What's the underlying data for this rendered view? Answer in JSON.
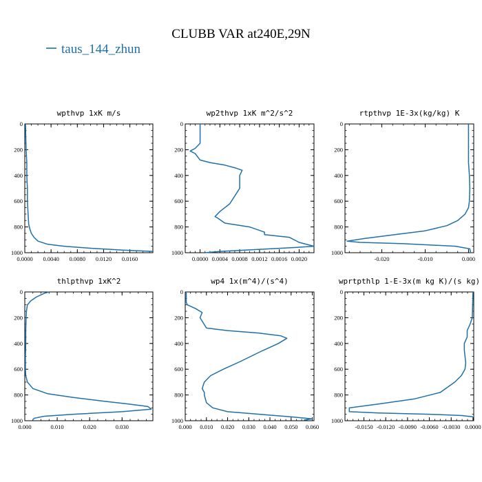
{
  "figure": {
    "title": "CLUBB VAR at240E,29N",
    "legend_label": "taus_144_zhun",
    "line_color": "#1f6fa8"
  },
  "chart_data": [
    {
      "type": "line",
      "title": "wpthvp   1xK m/s",
      "xlim": [
        0,
        0.0195
      ],
      "ylim": [
        1000,
        0
      ],
      "xticks": [
        0,
        0.004,
        0.008,
        0.012,
        0.016
      ],
      "xtick_labels": [
        "0.0000",
        "0.0040",
        "0.0080",
        "0.0120",
        "0.0160"
      ],
      "yticks": [
        0,
        200,
        400,
        600,
        800,
        1000
      ],
      "ytick_labels": [
        "0",
        "200",
        "400",
        "600",
        "800",
        "1000"
      ],
      "series": [
        {
          "x": [
            0.0001,
            0.0002,
            0.0003,
            0.0003,
            0.0004,
            0.0004,
            0.0005,
            0.0006,
            0.0008,
            0.001,
            0.0014,
            0.002,
            0.0035,
            0.006,
            0.01,
            0.015,
            0.0195
          ],
          "y": [
            0,
            200,
            300,
            400,
            500,
            600,
            700,
            780,
            820,
            850,
            880,
            910,
            935,
            950,
            965,
            980,
            990
          ]
        }
      ]
    },
    {
      "type": "line",
      "title": "wp2thvp   1xK m^2/s^2",
      "xlim": [
        -0.0003,
        0.0023
      ],
      "ylim": [
        1000,
        0
      ],
      "xticks": [
        0,
        0.0004,
        0.0008,
        0.0012,
        0.0016,
        0.002
      ],
      "xtick_labels": [
        "0.0000",
        "0.0004",
        "0.0008",
        "0.0012",
        "0.0016",
        "0.0020"
      ],
      "yticks": [
        0,
        200,
        400,
        600,
        800,
        1000
      ],
      "ytick_labels": [
        "0",
        "200",
        "400",
        "600",
        "800",
        "1000"
      ],
      "series": [
        {
          "x": [
            0.0,
            0.0,
            -0.0001,
            -0.0002,
            -0.0001,
            0.0,
            0.0002,
            0.0005,
            0.0007,
            0.00085,
            0.0008,
            0.0008,
            0.0008,
            0.0007,
            0.0006,
            0.0004,
            0.0003,
            0.00035,
            0.0005,
            0.001,
            0.0013,
            0.0013,
            0.0018,
            0.002,
            0.0023,
            0.0019,
            0.0014,
            0.0009,
            0.0004,
            0.0001
          ],
          "y": [
            0,
            150,
            190,
            210,
            230,
            280,
            300,
            320,
            340,
            360,
            400,
            450,
            500,
            560,
            620,
            680,
            720,
            730,
            770,
            800,
            840,
            860,
            880,
            920,
            950,
            960,
            970,
            980,
            990,
            1000
          ]
        }
      ]
    },
    {
      "type": "line",
      "title": "rtpthvp   1E-3x(kg/kg) K",
      "xlim": [
        -0.0285,
        0.0012
      ],
      "ylim": [
        1000,
        0
      ],
      "xticks": [
        -0.02,
        -0.01,
        0
      ],
      "xtick_labels": [
        "-0.020",
        "-0.010",
        "0.000"
      ],
      "yticks": [
        0,
        200,
        400,
        600,
        800,
        1000
      ],
      "ytick_labels": [
        "0",
        "200",
        "400",
        "600",
        "800",
        "1000"
      ],
      "series": [
        {
          "x": [
            0.0,
            0.0,
            0.0,
            0.0002,
            0.0003,
            0.0002,
            0.0,
            -0.0008,
            -0.0025,
            -0.005,
            -0.01,
            -0.017,
            -0.024,
            -0.028,
            -0.025,
            -0.015,
            -0.003,
            0.0003,
            0.0005
          ],
          "y": [
            0,
            100,
            300,
            400,
            500,
            600,
            650,
            700,
            750,
            790,
            830,
            860,
            890,
            910,
            920,
            930,
            950,
            970,
            1000
          ]
        }
      ]
    },
    {
      "type": "line",
      "title": "thlpthvp   1xK^2",
      "xlim": [
        0,
        0.0395
      ],
      "ylim": [
        1000,
        0
      ],
      "xticks": [
        0,
        0.01,
        0.02,
        0.03
      ],
      "xtick_labels": [
        "0.000",
        "0.010",
        "0.020",
        "0.030"
      ],
      "yticks": [
        0,
        200,
        400,
        600,
        800,
        1000
      ],
      "ytick_labels": [
        "0",
        "200",
        "400",
        "600",
        "800",
        "1000"
      ],
      "series": [
        {
          "x": [
            0.0075,
            0.006,
            0.0035,
            0.0018,
            0.0008,
            0.0005,
            0.0004,
            0.0003,
            0.0003,
            0.0002,
            0.0002,
            0.0003,
            0.0008,
            0.0025,
            0.007,
            0.015,
            0.025,
            0.032,
            0.038,
            0.039,
            0.03,
            0.015,
            0.006,
            0.003,
            0.0025
          ],
          "y": [
            0,
            10,
            40,
            70,
            100,
            150,
            200,
            300,
            400,
            500,
            600,
            650,
            700,
            750,
            790,
            820,
            850,
            870,
            890,
            910,
            930,
            950,
            965,
            980,
            990
          ]
        }
      ]
    },
    {
      "type": "line",
      "title": "wp4   1x(m^4)/(s^4)",
      "xlim": [
        0,
        0.0608
      ],
      "ylim": [
        1000,
        0
      ],
      "xticks": [
        0,
        0.01,
        0.02,
        0.03,
        0.04,
        0.05,
        0.06
      ],
      "xtick_labels": [
        "0.000",
        "0.010",
        "0.020",
        "0.030",
        "0.040",
        "0.050",
        "0.060"
      ],
      "yticks": [
        0,
        200,
        400,
        600,
        800,
        1000
      ],
      "ytick_labels": [
        "0",
        "200",
        "400",
        "600",
        "800",
        "1000"
      ],
      "series": [
        {
          "x": [
            0.0005,
            0.0005,
            0.001,
            0.005,
            0.008,
            0.007,
            0.01,
            0.02,
            0.035,
            0.045,
            0.048,
            0.044,
            0.036,
            0.026,
            0.018,
            0.012,
            0.009,
            0.008,
            0.009,
            0.009,
            0.01,
            0.013,
            0.02,
            0.035,
            0.05,
            0.06,
            0.056
          ],
          "y": [
            0,
            80,
            100,
            130,
            160,
            200,
            280,
            300,
            320,
            340,
            360,
            400,
            460,
            540,
            600,
            650,
            700,
            750,
            780,
            800,
            860,
            900,
            930,
            950,
            970,
            985,
            995
          ]
        }
      ]
    },
    {
      "type": "line",
      "title": "wprtpthlp   1-E-3x(m kg K)/(s kg)",
      "xlim": [
        -0.0176,
        0.0001
      ],
      "ylim": [
        1000,
        0
      ],
      "xticks": [
        -0.015,
        -0.012,
        -0.009,
        -0.006,
        -0.003,
        0
      ],
      "xtick_labels": [
        "-0.0150",
        "-0.0120",
        "-0.0090",
        "-0.0060",
        "-0.0030",
        "0.0000"
      ],
      "yticks": [
        0,
        200,
        400,
        600,
        800,
        1000
      ],
      "ytick_labels": [
        "0",
        "200",
        "400",
        "600",
        "800",
        "1000"
      ],
      "series": [
        {
          "x": [
            0.0,
            -0.0001,
            -0.0004,
            -0.0008,
            -0.0008,
            -0.0012,
            -0.0012,
            -0.0011,
            -0.001,
            -0.0011,
            -0.0016,
            -0.0025,
            -0.0045,
            -0.008,
            -0.013,
            -0.017,
            -0.017,
            -0.013,
            -0.006,
            -0.0015,
            0.0
          ],
          "y": [
            0,
            200,
            250,
            300,
            350,
            400,
            450,
            500,
            550,
            600,
            650,
            700,
            780,
            830,
            870,
            900,
            930,
            940,
            950,
            960,
            970
          ]
        }
      ]
    }
  ]
}
